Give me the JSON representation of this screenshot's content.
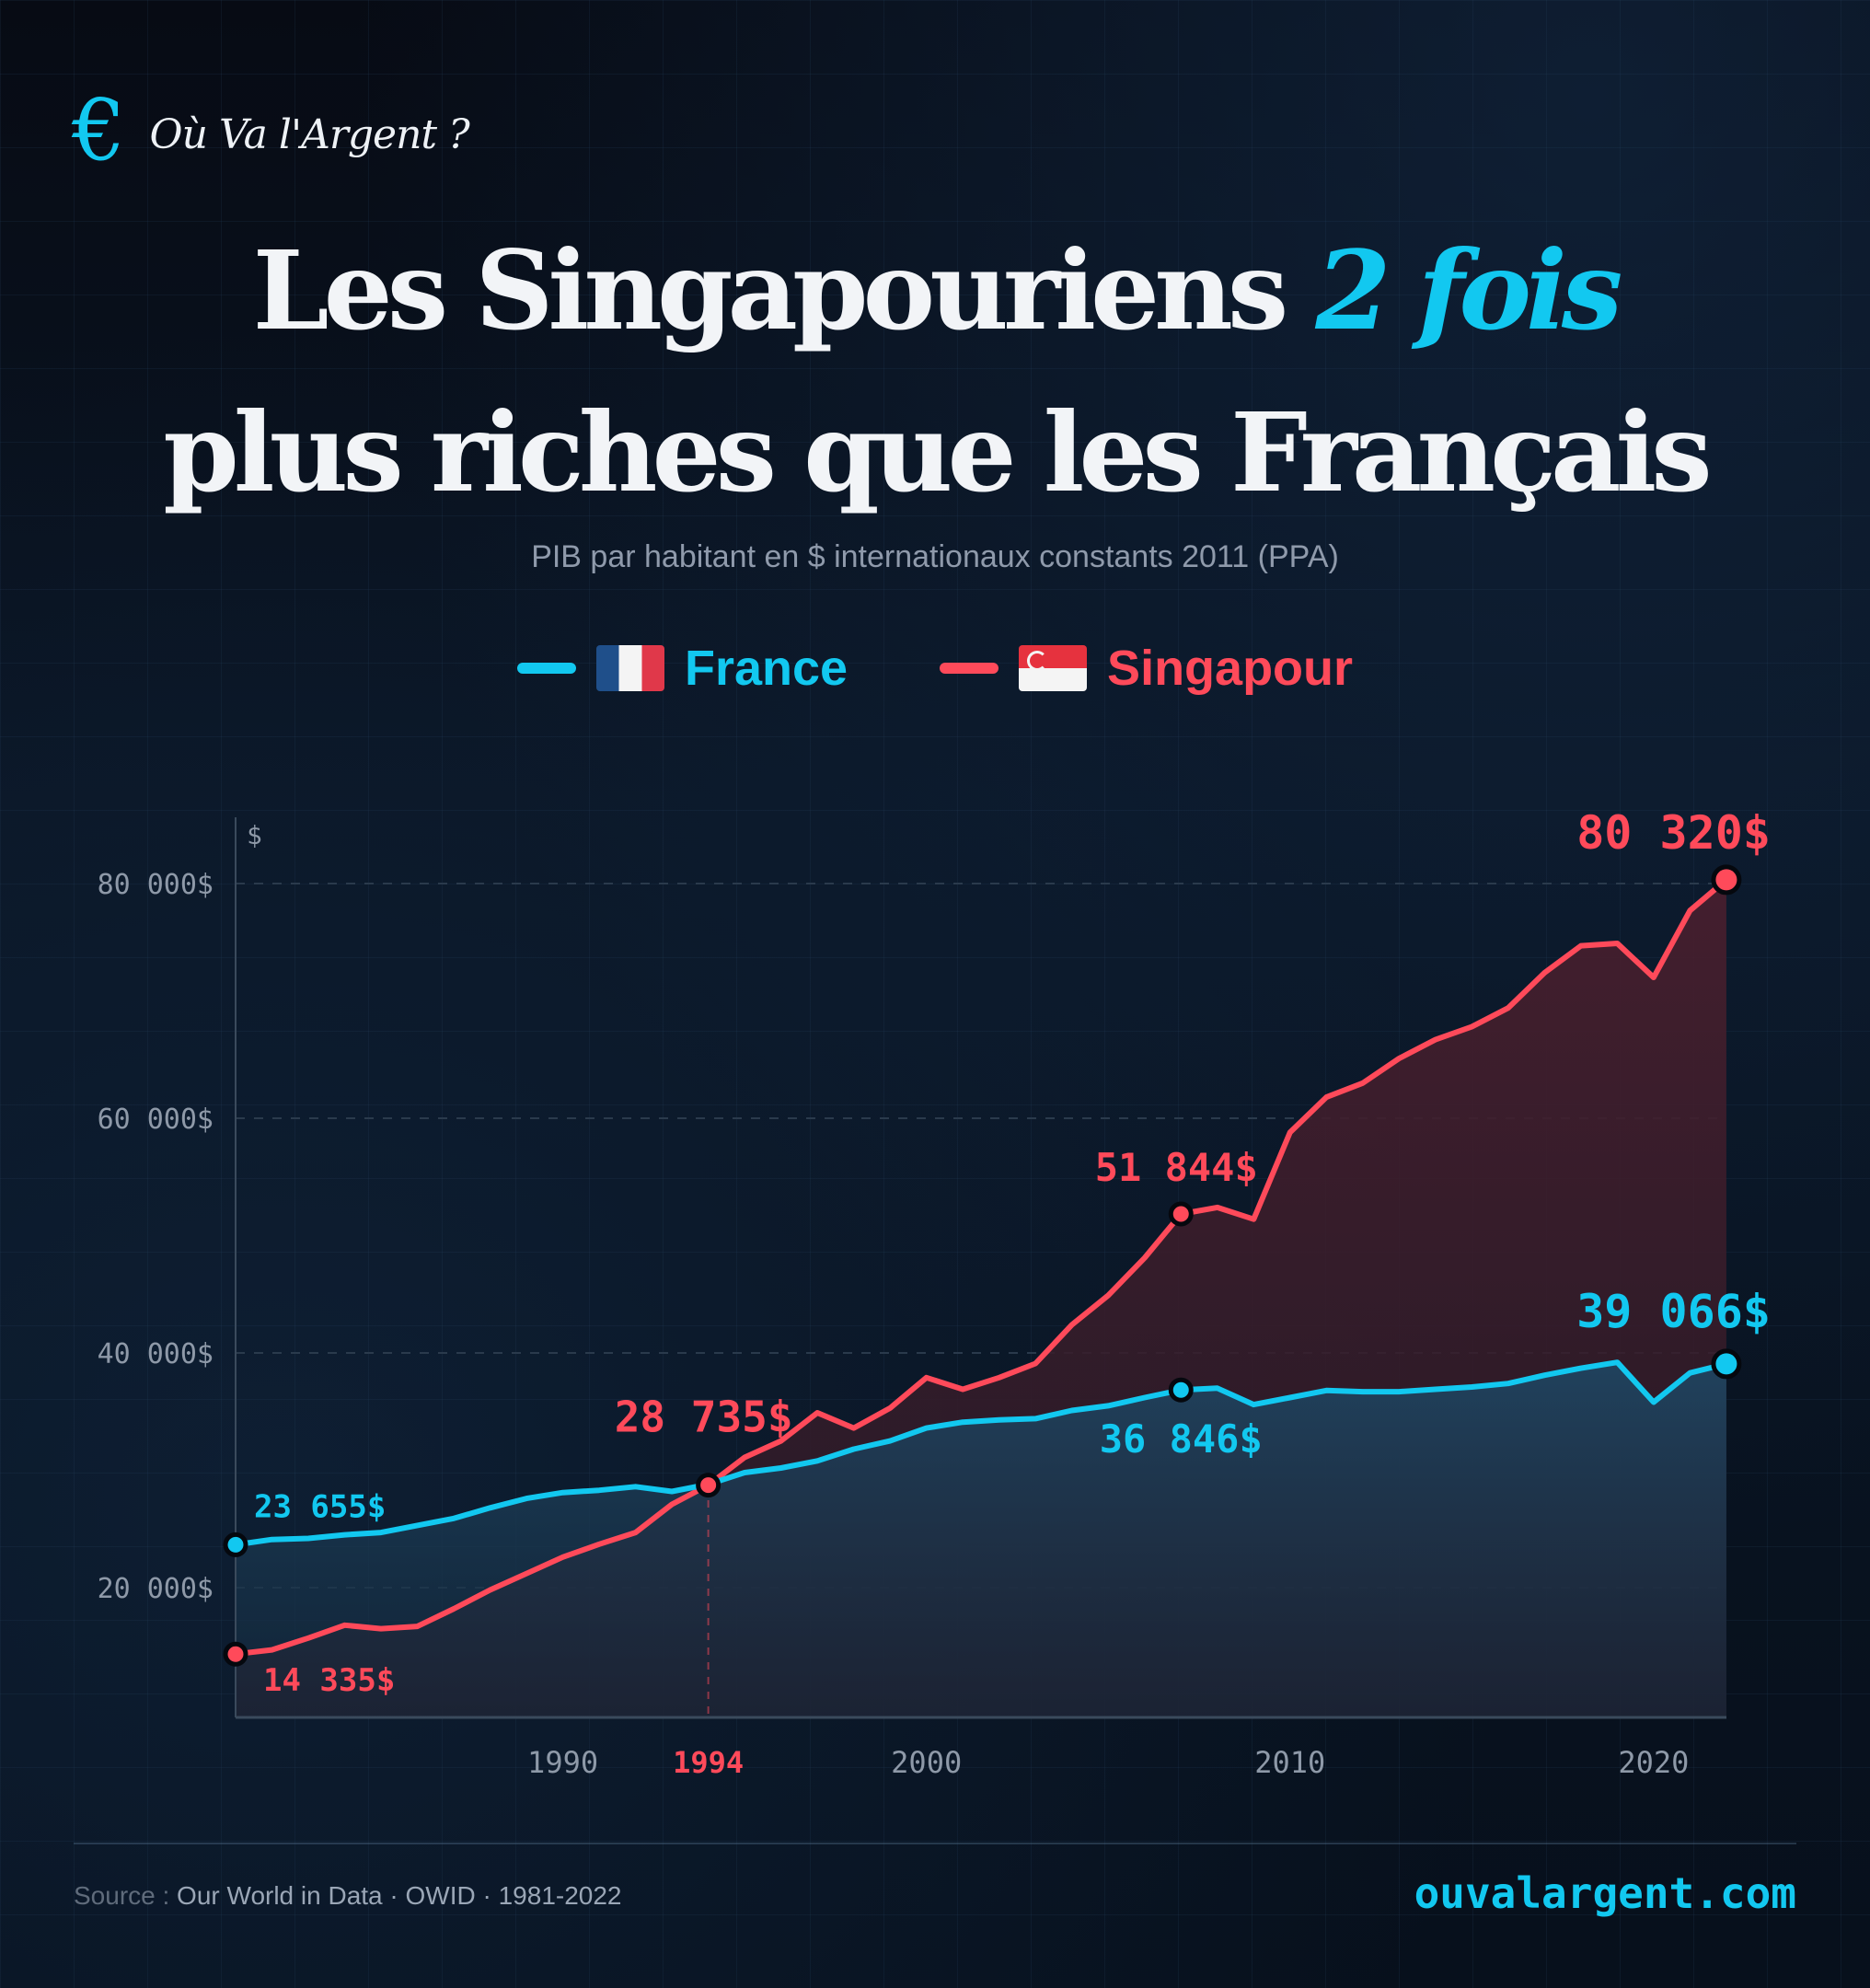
{
  "brand": {
    "icon": "euro-icon",
    "symbol": "€",
    "name": "Où Va l'Argent ?"
  },
  "title": {
    "line1_prefix": "Les Singapouriens ",
    "line1_highlight": "2 fois",
    "line2": "plus riches que les Français"
  },
  "subtitle": "PIB par habitant en $ internationaux constants 2011 (PPA)",
  "legend": [
    {
      "label": "France",
      "flag": "flag-france-icon",
      "color": "#12c8f0"
    },
    {
      "label": "Singapour",
      "flag": "flag-singapore-icon",
      "color": "#ff4a5a"
    }
  ],
  "colors": {
    "france": "#12c8f0",
    "singapore": "#ff4a5a",
    "axis_text": "#8e99a8",
    "background": "#070b14"
  },
  "footer": {
    "source_label": "Source :",
    "source_text": " Our World in Data · OWID · 1981-2022",
    "site": "ouvalargent.com"
  },
  "chart_data": {
    "type": "line",
    "title": "Les Singapouriens 2 fois plus riches que les Français",
    "subtitle": "PIB par habitant en $ internationaux constants 2011 (PPA)",
    "xlabel": "",
    "ylabel": "$",
    "ylim": [
      10000,
      85000
    ],
    "xlim": [
      1981,
      2022
    ],
    "y_ticks": [
      20000,
      40000,
      60000,
      80000
    ],
    "y_tick_labels": [
      "20 000$",
      "40 000$",
      "60 000$",
      "80 000$"
    ],
    "x_ticks": [
      1990,
      1994,
      2000,
      2010,
      2020
    ],
    "x_tick_labels": [
      "1990",
      "1994",
      "2000",
      "2010",
      "2020"
    ],
    "highlight_x": 1994,
    "grid": true,
    "legend_position": "top",
    "x": [
      1981,
      1982,
      1983,
      1984,
      1985,
      1986,
      1987,
      1988,
      1989,
      1990,
      1991,
      1992,
      1993,
      1994,
      1995,
      1996,
      1997,
      1998,
      1999,
      2000,
      2001,
      2002,
      2003,
      2004,
      2005,
      2006,
      2007,
      2008,
      2009,
      2010,
      2011,
      2012,
      2013,
      2014,
      2015,
      2016,
      2017,
      2018,
      2019,
      2020,
      2021,
      2022
    ],
    "series": [
      {
        "name": "France",
        "color": "#12c8f0",
        "values": [
          23655,
          24100,
          24200,
          24500,
          24700,
          25300,
          25900,
          26800,
          27600,
          28100,
          28300,
          28600,
          28200,
          28800,
          29800,
          30200,
          30800,
          31800,
          32500,
          33600,
          34100,
          34300,
          34400,
          35100,
          35500,
          36200,
          36846,
          37000,
          35600,
          36200,
          36800,
          36700,
          36700,
          36900,
          37100,
          37400,
          38100,
          38700,
          39200,
          35800,
          38300,
          39066
        ]
      },
      {
        "name": "Singapour",
        "color": "#ff4a5a",
        "values": [
          14335,
          14700,
          15700,
          16800,
          16500,
          16700,
          18200,
          19800,
          21200,
          22600,
          23700,
          24700,
          27100,
          28735,
          31100,
          32500,
          34900,
          33600,
          35300,
          37900,
          36900,
          37900,
          39100,
          42400,
          44900,
          48100,
          51844,
          52400,
          51400,
          58800,
          61800,
          63000,
          65100,
          66700,
          67800,
          69400,
          72400,
          74700,
          74900,
          72000,
          77700,
          80320
        ]
      }
    ],
    "annotations": [
      {
        "series": "France",
        "x": 1981,
        "label": "23 655$"
      },
      {
        "series": "Singapour",
        "x": 1981,
        "label": "14 335$"
      },
      {
        "series": "Singapour",
        "x": 1994,
        "label": "28 735$"
      },
      {
        "series": "Singapour",
        "x": 2007,
        "label": "51 844$"
      },
      {
        "series": "France",
        "x": 2007,
        "label": "36 846$"
      },
      {
        "series": "Singapour",
        "x": 2022,
        "label": "80 320$"
      },
      {
        "series": "France",
        "x": 2022,
        "label": "39 066$"
      }
    ]
  }
}
